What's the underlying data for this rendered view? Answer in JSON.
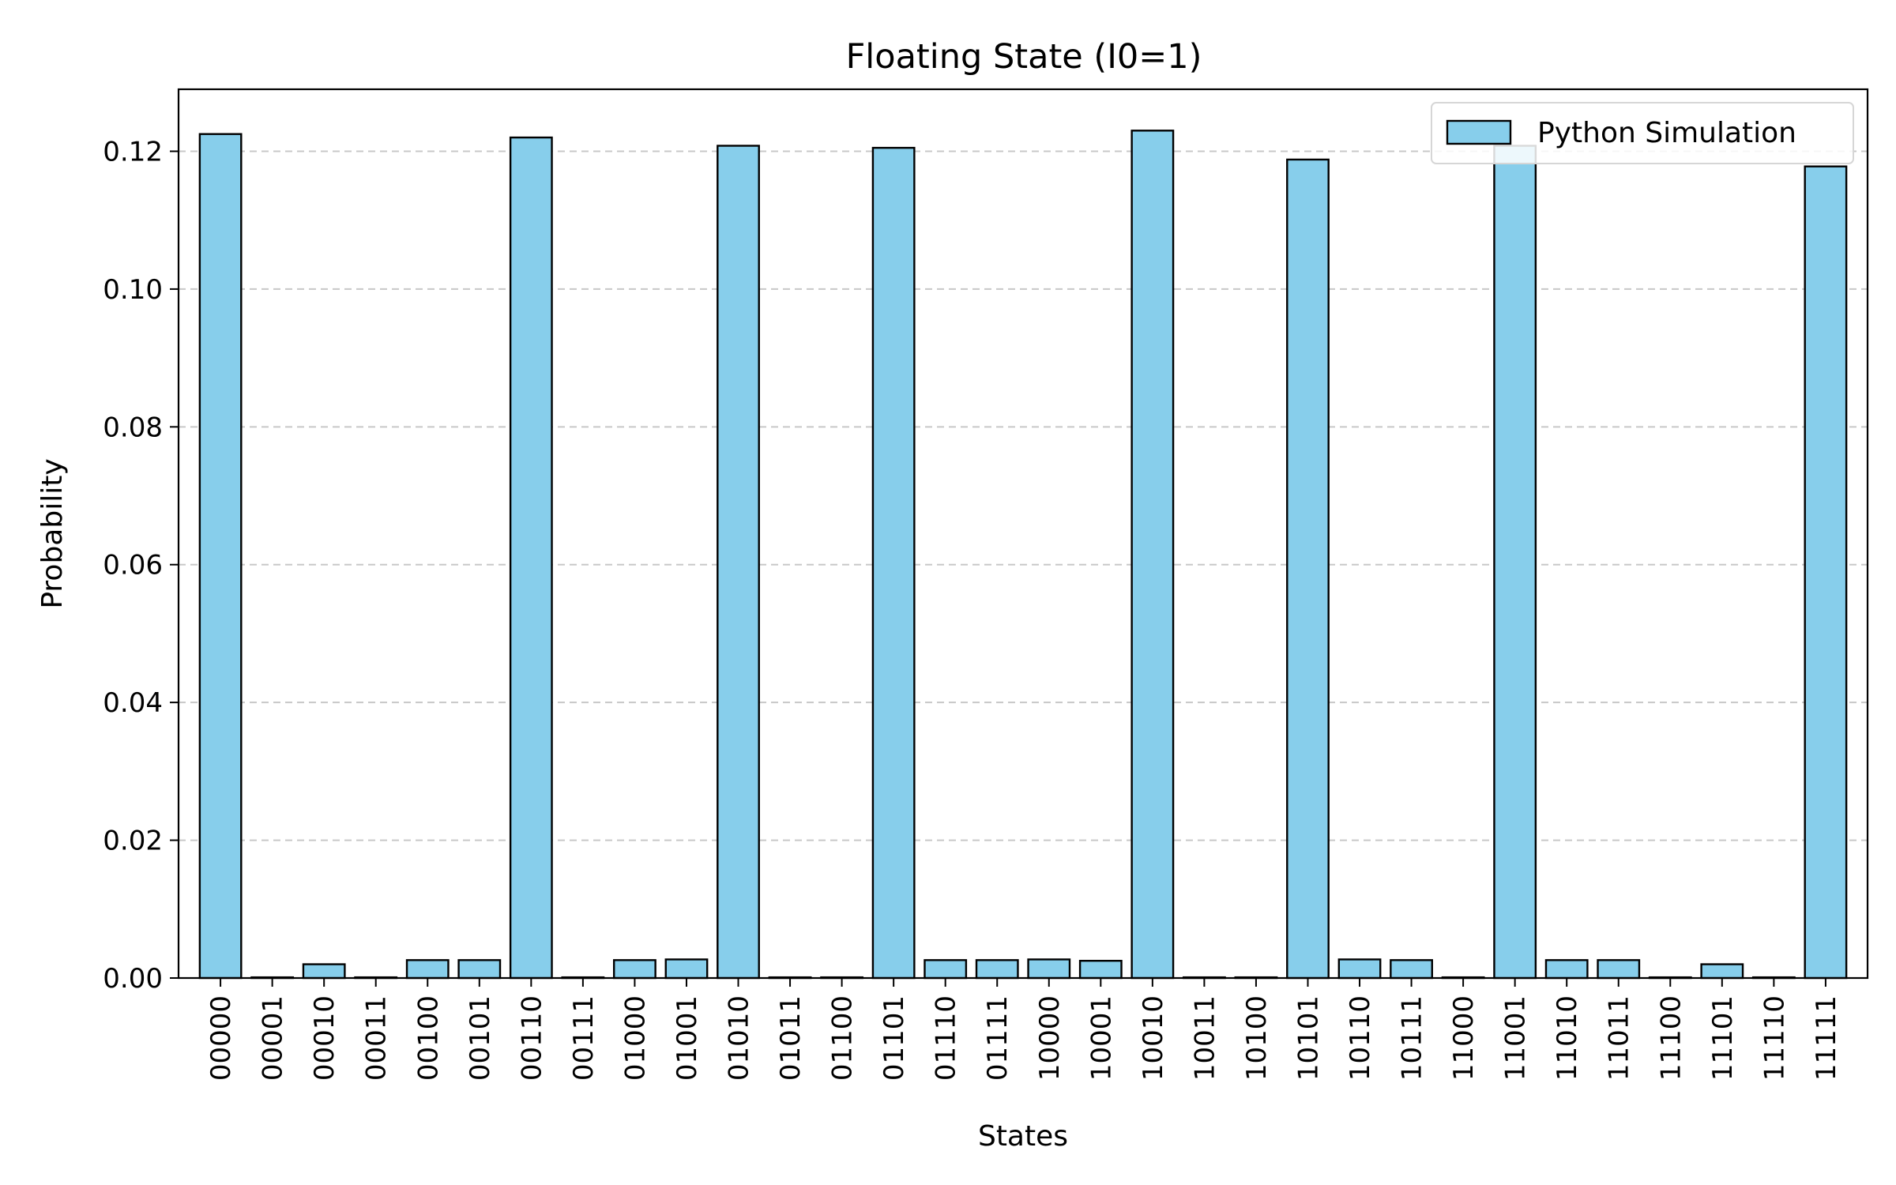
{
  "chart_data": {
    "type": "bar",
    "title": "Floating State (I0=1)",
    "xlabel": "States",
    "ylabel": "Probability",
    "ylim": [
      0,
      0.129
    ],
    "yticks": [
      "0.00",
      "0.02",
      "0.04",
      "0.06",
      "0.08",
      "0.10",
      "0.12"
    ],
    "grid": "horizontal dashed",
    "legend_position": "top-right",
    "series": [
      {
        "name": "Python Simulation",
        "color": "#87CEEB",
        "values": [
          0.1225,
          0.0001,
          0.002,
          0.0001,
          0.0026,
          0.0026,
          0.122,
          0.0001,
          0.0026,
          0.0027,
          0.1208,
          0.0001,
          0.0001,
          0.1205,
          0.0026,
          0.0026,
          0.0027,
          0.0025,
          0.123,
          0.0001,
          0.0001,
          0.1188,
          0.0027,
          0.0026,
          0.0001,
          0.1208,
          0.0026,
          0.0026,
          0.0001,
          0.002,
          0.0001,
          0.1178
        ]
      }
    ],
    "categories": [
      "00000",
      "00001",
      "00010",
      "00011",
      "00100",
      "00101",
      "00110",
      "00111",
      "01000",
      "01001",
      "01010",
      "01011",
      "01100",
      "01101",
      "01110",
      "01111",
      "10000",
      "10001",
      "10010",
      "10011",
      "10100",
      "10101",
      "10110",
      "10111",
      "11000",
      "11001",
      "11010",
      "11011",
      "11100",
      "11101",
      "11110",
      "11111"
    ],
    "highlighted_categories": [
      "00000",
      "00110",
      "01010",
      "01101",
      "10010",
      "10101",
      "11001",
      "11111"
    ],
    "highlight_color": "#ff0000",
    "label_color": "#000000"
  }
}
